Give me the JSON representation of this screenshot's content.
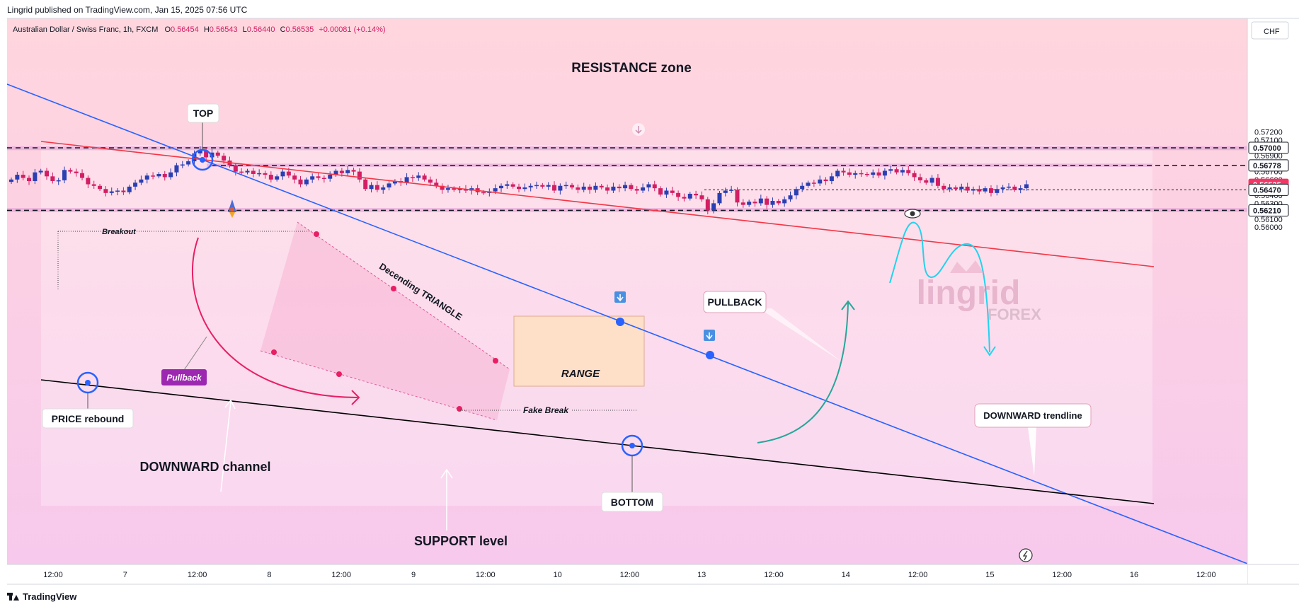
{
  "header": {
    "publisher": "Lingrid published on TradingView.com, Jan 15, 2025 07:56 UTC"
  },
  "footer": {
    "brand": "TradingView"
  },
  "currency_badge": "CHF",
  "symbol_info": {
    "name": "Australian Dollar / Swiss Franc, 1h, FXCM",
    "o_label": "O",
    "o": "0.56454",
    "h_label": "H",
    "h": "0.56543",
    "l_label": "L",
    "l": "0.56440",
    "c_label": "C",
    "c": "0.56535",
    "change": "+0.00081 (+0.14%)"
  },
  "watermark": {
    "line1": "lingrid",
    "line2": "FOREX"
  },
  "chart_data": {
    "type": "candlestick",
    "symbol": "AUDCHF",
    "timeframe": "1h",
    "ylim": [
      0.5594,
      0.5728
    ],
    "y_ticks": [
      "0.57200",
      "0.57100",
      "0.56900",
      "0.56800",
      "0.56700",
      "0.56600",
      "0.56500",
      "0.56400",
      "0.56300",
      "0.56100",
      "0.56000"
    ],
    "x_ticks": [
      "12:00",
      "7",
      "12:00",
      "8",
      "12:00",
      "9",
      "12:00",
      "10",
      "12:00",
      "13",
      "12:00",
      "14",
      "12:00",
      "15",
      "12:00",
      "16",
      "12:00"
    ],
    "price_tags": [
      {
        "value": "0.57000",
        "kind": "level"
      },
      {
        "value": "0.56778",
        "kind": "level"
      },
      {
        "value": "0.56535",
        "kind": "last"
      },
      {
        "value": "0.56470",
        "kind": "level"
      },
      {
        "value": "0.56210",
        "kind": "level"
      }
    ],
    "zones": [
      {
        "name": "resistance",
        "from": 0.5697,
        "to": 0.5702
      },
      {
        "name": "mid",
        "from": 0.5676,
        "to": 0.568
      },
      {
        "name": "support",
        "from": 0.5619,
        "to": 0.5624
      }
    ],
    "levels": [
      0.57,
      0.56778,
      0.5647,
      0.5621
    ],
    "candles_note": "Approximate hourly AUDCHF path from Jan 6 to Jan 15, 2025",
    "closes": [
      0.566,
      0.5666,
      0.5662,
      0.5658,
      0.5669,
      0.5671,
      0.5664,
      0.5658,
      0.5659,
      0.5672,
      0.567,
      0.5668,
      0.5662,
      0.5654,
      0.5652,
      0.5648,
      0.5643,
      0.5645,
      0.5646,
      0.5644,
      0.5651,
      0.5656,
      0.566,
      0.5665,
      0.5664,
      0.5667,
      0.5663,
      0.5669,
      0.5678,
      0.5679,
      0.5683,
      0.5693,
      0.5697,
      0.5688,
      0.5694,
      0.569,
      0.5684,
      0.5678,
      0.567,
      0.5669,
      0.5671,
      0.5667,
      0.5668,
      0.5666,
      0.566,
      0.5664,
      0.567,
      0.5665,
      0.566,
      0.5654,
      0.566,
      0.5664,
      0.5662,
      0.5661,
      0.5666,
      0.5671,
      0.5668,
      0.5672,
      0.567,
      0.566,
      0.5648,
      0.5653,
      0.5647,
      0.565,
      0.5655,
      0.5658,
      0.5656,
      0.5663,
      0.5662,
      0.5665,
      0.566,
      0.5656,
      0.5652,
      0.5647,
      0.5649,
      0.5647,
      0.5648,
      0.5646,
      0.5649,
      0.5644,
      0.5643,
      0.5645,
      0.5649,
      0.5652,
      0.5654,
      0.5651,
      0.5648,
      0.565,
      0.5652,
      0.5653,
      0.5651,
      0.5653,
      0.5646,
      0.5652,
      0.5653,
      0.565,
      0.5647,
      0.5651,
      0.5647,
      0.5652,
      0.565,
      0.5646,
      0.5651,
      0.5649,
      0.5653,
      0.5648,
      0.5646,
      0.565,
      0.5654,
      0.5649,
      0.5641,
      0.5646,
      0.5643,
      0.5638,
      0.5636,
      0.5642,
      0.564,
      0.5635,
      0.5621,
      0.563,
      0.5643,
      0.5646,
      0.5647,
      0.5631,
      0.5628,
      0.5632,
      0.563,
      0.5636,
      0.5628,
      0.5633,
      0.563,
      0.5635,
      0.564,
      0.5648,
      0.5652,
      0.5656,
      0.5655,
      0.566,
      0.5658,
      0.5664,
      0.5671,
      0.5669,
      0.5666,
      0.5668,
      0.5667,
      0.5666,
      0.5669,
      0.5665,
      0.5671,
      0.5673,
      0.5669,
      0.5672,
      0.5668,
      0.5663,
      0.5659,
      0.5656,
      0.5662,
      0.5652,
      0.5648,
      0.565,
      0.5648,
      0.5651,
      0.5646,
      0.5648,
      0.5645,
      0.5649,
      0.5643,
      0.5648,
      0.565,
      0.5651,
      0.5647,
      0.5649,
      0.5654
    ]
  },
  "annotations": {
    "resistance_zone": "RESISTANCE zone",
    "top": "TOP",
    "breakout": "Breakout",
    "price_rebound": "PRICE rebound",
    "pullback_small": "Pullback",
    "downward_channel": "DOWNWARD channel",
    "support_level": "SUPPORT level",
    "decending_triangle": "Decending TRIANGLE",
    "range": "RANGE",
    "fake_break": "Fake Break",
    "bottom": "BOTTOM",
    "pullback": "PULLBACK",
    "downward_trendline": "DOWNWARD trendline"
  },
  "colors": {
    "bg_top": "#ffd6de",
    "bg_bottom": "#f7c9ec",
    "zone": "#e5a6d8",
    "bull": "#2a3fb2",
    "bear": "#d21e64",
    "blue_line": "#2962ff",
    "red_line": "#f23645",
    "black_line": "#000000",
    "cyan": "#22d3ee",
    "green": "#26a69a",
    "tag_dark": "#131722",
    "tag_last": "#f23666"
  }
}
